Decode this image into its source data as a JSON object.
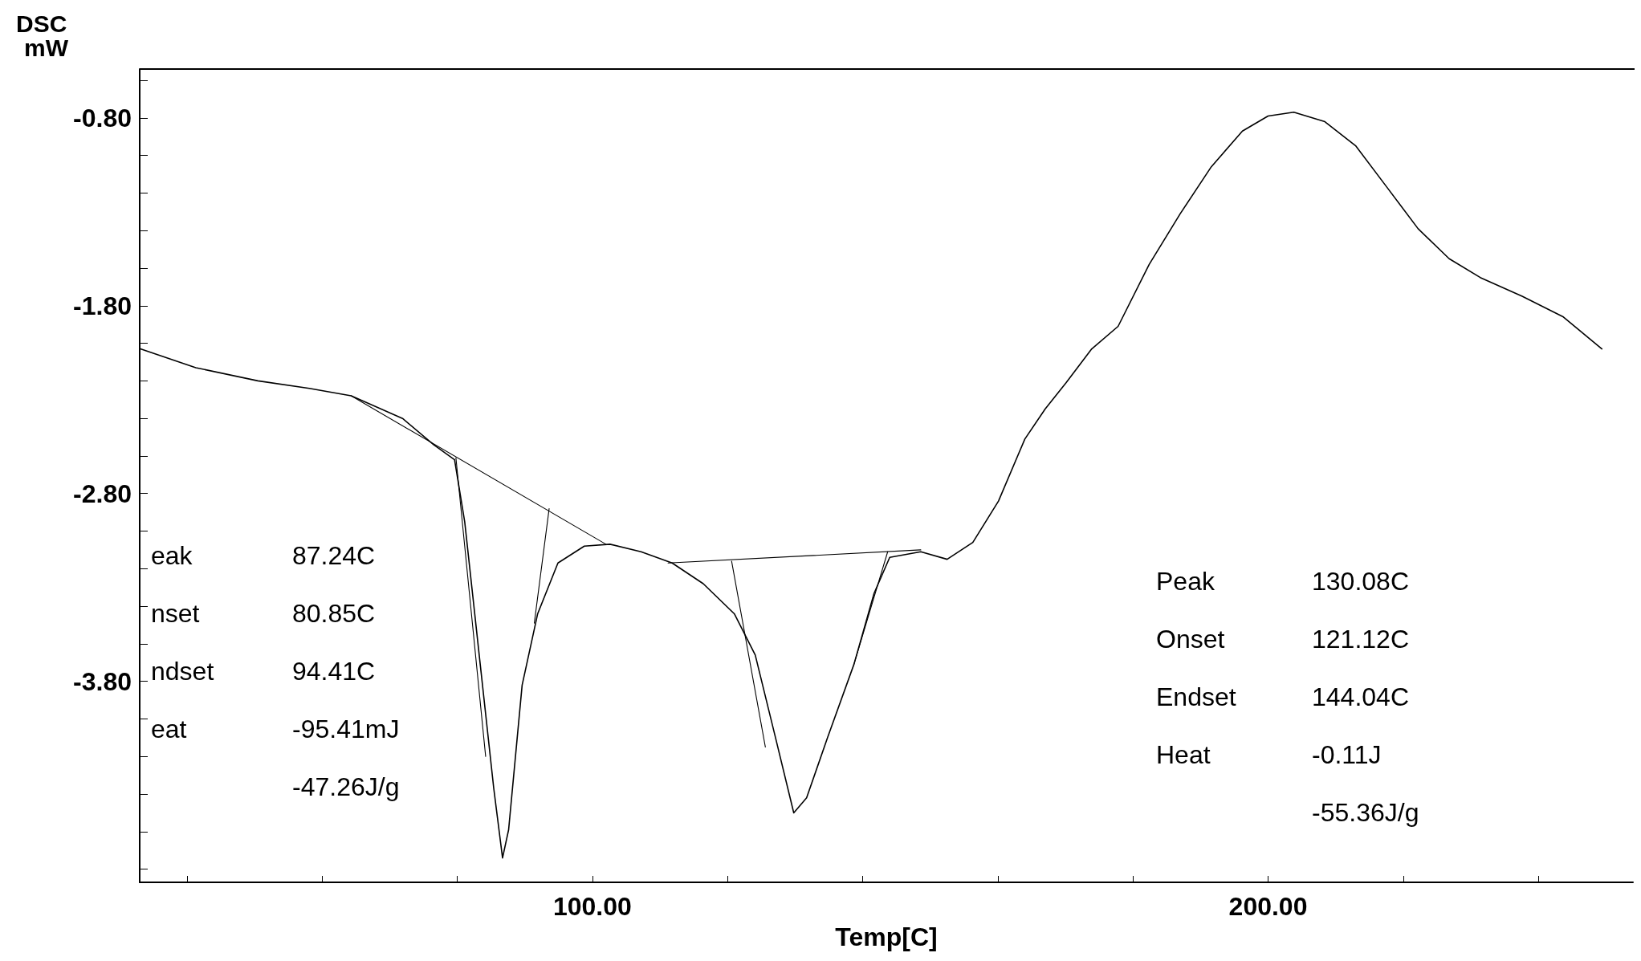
{
  "chart_data": {
    "type": "line",
    "xlabel": "Temp[C]",
    "ylabel": "DSC\nmW",
    "xlim": [
      33,
      254
    ],
    "ylim": [
      -4.87,
      -0.54
    ],
    "xticks": [
      {
        "value": 40,
        "label": null
      },
      {
        "value": 60,
        "label": null
      },
      {
        "value": 80,
        "label": null
      },
      {
        "value": 100,
        "label": "100.00"
      },
      {
        "value": 120,
        "label": null
      },
      {
        "value": 140,
        "label": null
      },
      {
        "value": 160,
        "label": null
      },
      {
        "value": 180,
        "label": null
      },
      {
        "value": 200,
        "label": "200.00"
      },
      {
        "value": 220,
        "label": null
      },
      {
        "value": 240,
        "label": null
      }
    ],
    "yticks": [
      {
        "value": -4.8,
        "label": null
      },
      {
        "value": -4.6,
        "label": null
      },
      {
        "value": -4.4,
        "label": null
      },
      {
        "value": -4.2,
        "label": null
      },
      {
        "value": -4.0,
        "label": null
      },
      {
        "value": -3.8,
        "label": "-3.80"
      },
      {
        "value": -3.6,
        "label": null
      },
      {
        "value": -3.4,
        "label": null
      },
      {
        "value": -3.2,
        "label": null
      },
      {
        "value": -3.0,
        "label": null
      },
      {
        "value": -2.8,
        "label": "-2.80"
      },
      {
        "value": -2.6,
        "label": null
      },
      {
        "value": -2.4,
        "label": null
      },
      {
        "value": -2.2,
        "label": null
      },
      {
        "value": -2.0,
        "label": null
      },
      {
        "value": -1.8,
        "label": "-1.80"
      },
      {
        "value": -1.6,
        "label": null
      },
      {
        "value": -1.4,
        "label": null
      },
      {
        "value": -1.2,
        "label": null
      },
      {
        "value": -1.0,
        "label": null
      },
      {
        "value": -0.8,
        "label": "-0.80"
      },
      {
        "value": -0.6,
        "label": null
      }
    ],
    "marker": "none",
    "series": [
      {
        "color": "#000000",
        "x": [
          33.1,
          41.3,
          50.5,
          58.1,
          64.3,
          71.9,
          76.5,
          79.6,
          81.1,
          83.4,
          85.4,
          86.7,
          87.6,
          89.6,
          91.9,
          94.9,
          98.8,
          102.6,
          107.2,
          111.8,
          116.4,
          121.0,
          124.1,
          127.1,
          129.8,
          131.7,
          134.8,
          138.7,
          141.7,
          144.0,
          148.6,
          152.5,
          156.3,
          160.1,
          164.0,
          167.0,
          170.1,
          173.9,
          177.8,
          182.4,
          187.0,
          191.6,
          196.2,
          200.0,
          203.8,
          208.4,
          213.0,
          217.6,
          222.2,
          226.8,
          231.4,
          237.6,
          243.7,
          249.4
        ],
        "values": [
          -2.03,
          -2.13,
          -2.2,
          -2.24,
          -2.28,
          -2.4,
          -2.54,
          -2.62,
          -2.95,
          -3.71,
          -4.37,
          -4.74,
          -4.59,
          -3.82,
          -3.44,
          -3.17,
          -3.08,
          -3.07,
          -3.11,
          -3.17,
          -3.28,
          -3.44,
          -3.66,
          -4.1,
          -4.5,
          -4.42,
          -4.1,
          -3.71,
          -3.33,
          -3.14,
          -3.11,
          -3.15,
          -3.06,
          -2.84,
          -2.51,
          -2.35,
          -2.21,
          -2.03,
          -1.91,
          -1.58,
          -1.31,
          -1.06,
          -0.87,
          -0.79,
          -0.77,
          -0.82,
          -0.95,
          -1.17,
          -1.39,
          -1.55,
          -1.65,
          -1.75,
          -1.86,
          -2.03
        ]
      },
      {
        "color": "#000000",
        "x": [
          64.3,
          102.0
        ],
        "values": [
          -2.28,
          -3.07
        ]
      },
      {
        "color": "#000000",
        "x": [
          111.2,
          148.6
        ],
        "values": [
          -3.17,
          -3.1
        ]
      },
      {
        "color": "#000000",
        "x": [
          79.8,
          84.2
        ],
        "values": [
          -2.61,
          -4.2
        ]
      },
      {
        "color": "#000000",
        "x": [
          93.6,
          91.4
        ],
        "values": [
          -2.88,
          -3.49
        ]
      },
      {
        "color": "#000000",
        "x": [
          120.6,
          125.6
        ],
        "values": [
          -3.16,
          -4.15
        ]
      },
      {
        "color": "#000000",
        "x": [
          143.7,
          138.7
        ],
        "values": [
          -3.11,
          -3.71
        ]
      }
    ],
    "annotations": [
      "eak\t87.24C",
      "nset\t80.85C",
      "ndset\t94.41C",
      "eat\t-95.41mJ",
      "\t-47.26J/g",
      "Peak\t130.08C",
      "Onset\t121.12C",
      "Endset\t144.04C",
      "Heat\t-0.11J",
      "\t-55.36J/g"
    ]
  }
}
